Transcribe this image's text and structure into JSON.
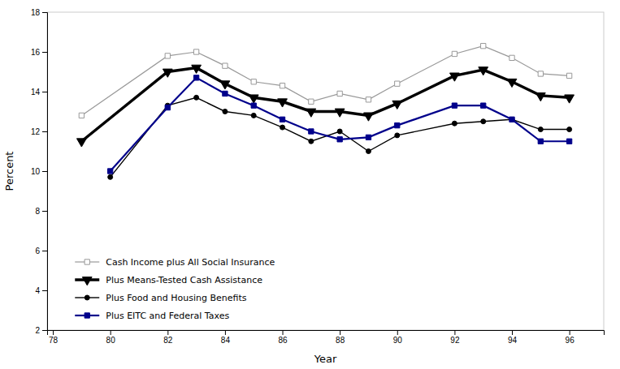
{
  "chart_data": {
    "type": "line",
    "xlabel": "Year",
    "ylabel": "Percent",
    "series": [
      {
        "name": "Cash Income plus All Social Insurance",
        "color": "#999999",
        "marker": "square-open",
        "x": [
          79,
          82,
          83,
          84,
          85,
          86,
          87,
          88,
          89,
          90,
          92,
          93,
          94,
          95,
          96
        ],
        "values": [
          12.8,
          15.8,
          16.0,
          15.3,
          14.5,
          14.3,
          13.5,
          13.9,
          13.6,
          14.4,
          15.9,
          16.3,
          15.7,
          14.9,
          14.8
        ]
      },
      {
        "name": "Plus Means-Tested Cash Assistance",
        "color": "#000000",
        "marker": "triangle-down",
        "x": [
          79,
          82,
          83,
          84,
          85,
          86,
          87,
          88,
          89,
          90,
          92,
          93,
          94,
          95,
          96
        ],
        "values": [
          11.5,
          15.0,
          15.2,
          14.4,
          13.7,
          13.5,
          13.0,
          13.0,
          12.8,
          13.4,
          14.8,
          15.1,
          14.5,
          13.8,
          13.7
        ]
      },
      {
        "name": "Plus Food and Housing Benefits",
        "color": "#000000",
        "marker": "circle",
        "x": [
          80,
          82,
          83,
          84,
          85,
          86,
          87,
          88,
          89,
          90,
          92,
          93,
          94,
          95,
          96
        ],
        "values": [
          9.7,
          13.3,
          13.7,
          13.0,
          12.8,
          12.2,
          11.5,
          12.0,
          11.0,
          11.8,
          12.4,
          12.5,
          12.6,
          12.1,
          12.1
        ]
      },
      {
        "name": "Plus EITC and Federal Taxes",
        "color": "#00008B",
        "marker": "square",
        "x": [
          80,
          82,
          83,
          84,
          85,
          86,
          87,
          88,
          89,
          90,
          92,
          93,
          94,
          95,
          96
        ],
        "values": [
          10.0,
          13.2,
          14.7,
          13.9,
          13.3,
          12.6,
          12.0,
          11.6,
          11.7,
          12.3,
          13.3,
          13.3,
          12.6,
          11.5,
          11.5
        ]
      }
    ],
    "xlim": [
      77.8,
      97.2
    ],
    "ylim": [
      2,
      18
    ],
    "xticks": [
      78,
      80,
      82,
      84,
      86,
      88,
      90,
      92,
      94,
      96
    ],
    "yticks": [
      2,
      4,
      6,
      8,
      10,
      12,
      14,
      16,
      18
    ],
    "grid": false,
    "legend": "lower-left"
  }
}
